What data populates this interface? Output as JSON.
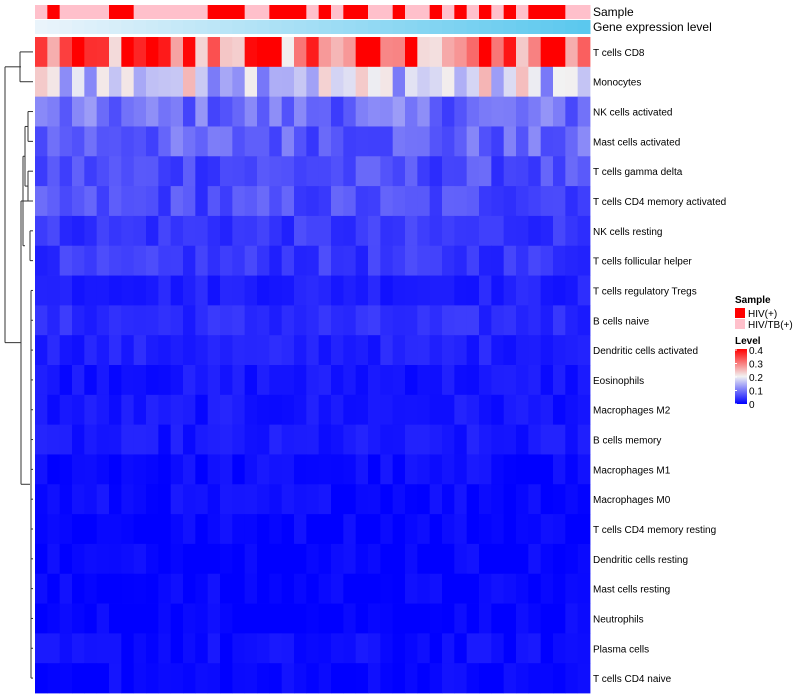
{
  "chart_data": {
    "type": "heatmap",
    "title": "",
    "rows": [
      "T cells CD8",
      "Monocytes",
      "NK cells activated",
      "Mast cells activated",
      "T cells gamma delta",
      "T cells CD4 memory activated",
      "NK cells resting",
      "T cells follicular helper",
      "T cells regulatory  Tregs",
      "B cells naive",
      "Dendritic cells activated",
      "Eosinophils",
      "Macrophages M2",
      "B cells memory",
      "Macrophages M1",
      "Macrophages M0",
      "T cells CD4 memory resting",
      "Dendritic cells resting",
      "Mast cells resting",
      "Neutrophils",
      "Plasma cells",
      "T cells CD4 naive"
    ],
    "row_means": [
      0.35,
      0.2,
      0.1,
      0.09,
      0.07,
      0.07,
      0.05,
      0.05,
      0.03,
      0.04,
      0.03,
      0.02,
      0.02,
      0.02,
      0.01,
      0.01,
      0.005,
      0.005,
      0.003,
      0.002,
      0.01,
      0.005
    ],
    "n_samples": 45,
    "sample_groups": [
      "HIV/TB(+)",
      "HIV(+)",
      "HIV/TB(+)",
      "HIV/TB(+)",
      "HIV/TB(+)",
      "HIV/TB(+)",
      "HIV(+)",
      "HIV(+)",
      "HIV/TB(+)",
      "HIV/TB(+)",
      "HIV/TB(+)",
      "HIV/TB(+)",
      "HIV/TB(+)",
      "HIV/TB(+)",
      "HIV(+)",
      "HIV(+)",
      "HIV(+)",
      "HIV/TB(+)",
      "HIV/TB(+)",
      "HIV(+)",
      "HIV(+)",
      "HIV(+)",
      "HIV/TB(+)",
      "HIV(+)",
      "HIV/TB(+)",
      "HIV(+)",
      "HIV(+)",
      "HIV/TB(+)",
      "HIV/TB(+)",
      "HIV(+)",
      "HIV/TB(+)",
      "HIV/TB(+)",
      "HIV(+)",
      "HIV/TB(+)",
      "HIV(+)",
      "HIV/TB(+)",
      "HIV(+)",
      "HIV/TB(+)",
      "HIV(+)",
      "HIV/TB(+)",
      "HIV(+)",
      "HIV(+)",
      "HIV(+)",
      "HIV/TB(+)",
      "HIV/TB(+)"
    ],
    "annotations": {
      "sample_label": "Sample",
      "expression_label": "Gene expression level"
    },
    "legend": {
      "sample_title": "Sample",
      "sample_entries": [
        {
          "label": "HIV(+)",
          "color": "#ff0000"
        },
        {
          "label": "HIV/TB(+)",
          "color": "#ffc0cb"
        }
      ],
      "level_title": "Level",
      "level_ticks": [
        "0.4",
        "0.3",
        "0.2",
        "0.1",
        "0"
      ],
      "level_values": [
        0.4,
        0.3,
        0.2,
        0.1,
        0
      ],
      "colors": {
        "low": "#0000ff",
        "mid": "#f2f2f2",
        "high": "#ff0000"
      }
    },
    "value_range": [
      0,
      0.45
    ],
    "expression_gradient": [
      "#eaf4fb",
      "#5bc8ee"
    ]
  }
}
